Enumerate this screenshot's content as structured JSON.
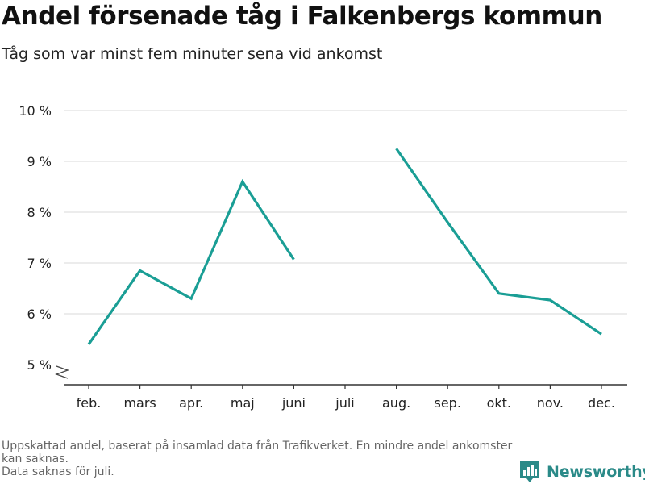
{
  "title": "Andel försenade tåg i Falkenbergs kommun",
  "subtitle": "Tåg som var minst fem minuter sena vid ankomst",
  "footnote": [
    "Uppskattad andel, baserat på insamlad data från Trafikverket. En mindre andel ankomster kan saknas.",
    "Data saknas för juli."
  ],
  "brand": {
    "name": "Newsworthy",
    "color": "#2a8a88"
  },
  "chart_data": {
    "type": "line",
    "categories": [
      "feb.",
      "mars",
      "apr.",
      "maj",
      "juni",
      "juli",
      "aug.",
      "sep.",
      "okt.",
      "nov.",
      "dec."
    ],
    "series": [
      {
        "values": [
          5.4,
          6.85,
          6.3,
          8.6,
          7.07,
          null,
          9.25,
          7.8,
          6.4,
          6.27,
          5.6
        ],
        "color": "#1a9e95"
      }
    ],
    "y_ticks": [
      5,
      6,
      7,
      8,
      9,
      10
    ],
    "y_tick_labels": [
      "5 %",
      "6 %",
      "7 %",
      "8 %",
      "9 %",
      "10 %"
    ],
    "ylim": [
      5,
      10
    ],
    "y_axis_break": true,
    "grid": "horizontal",
    "xlabel": "",
    "ylabel": ""
  }
}
